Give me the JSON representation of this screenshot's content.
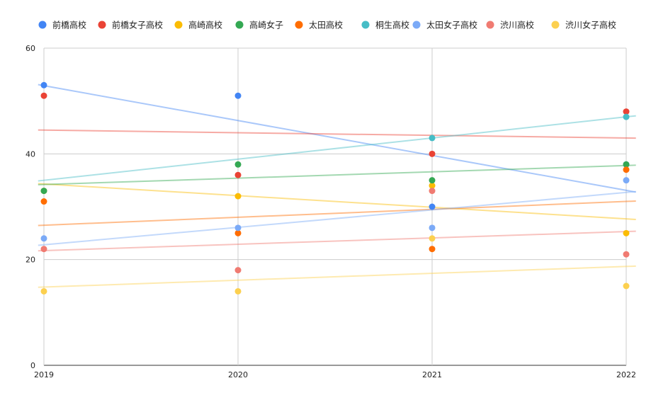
{
  "chart_data": {
    "type": "scatter",
    "trendlines": true,
    "legend_position": "top",
    "grid": true,
    "x": [
      2019,
      2020,
      2021,
      2022
    ],
    "x_tick_labels": [
      "2019",
      "2020",
      "2021",
      "2022"
    ],
    "ylim": [
      0,
      60
    ],
    "y_ticks": [
      0,
      20,
      40,
      60
    ],
    "y_tick_labels": [
      "0",
      "20",
      "40",
      "60"
    ],
    "series": [
      {
        "name": "前橋高校",
        "color": "#4285F4",
        "values": [
          53,
          51,
          30,
          38
        ]
      },
      {
        "name": "前橋女子高校",
        "color": "#EA4335",
        "values": [
          51,
          36,
          40,
          48
        ]
      },
      {
        "name": "高崎高校",
        "color": "#FBBC04",
        "values": [
          33,
          32,
          34,
          25
        ]
      },
      {
        "name": "高崎女子",
        "color": "#34A853",
        "values": [
          33,
          38,
          35,
          38
        ]
      },
      {
        "name": "太田高校",
        "color": "#FF6D01",
        "values": [
          31,
          25,
          22,
          37
        ]
      },
      {
        "name": "桐生高校",
        "color": "#46BDC6",
        "values": [
          null,
          null,
          43,
          47
        ]
      },
      {
        "name": "太田女子高校",
        "color": "#7BAAF7",
        "values": [
          24,
          26,
          26,
          35
        ]
      },
      {
        "name": "渋川高校",
        "color": "#F07B72",
        "values": [
          22,
          18,
          33,
          21
        ]
      },
      {
        "name": "渋川女子高校",
        "color": "#FCD04F",
        "values": [
          14,
          14,
          24,
          15
        ]
      }
    ]
  }
}
